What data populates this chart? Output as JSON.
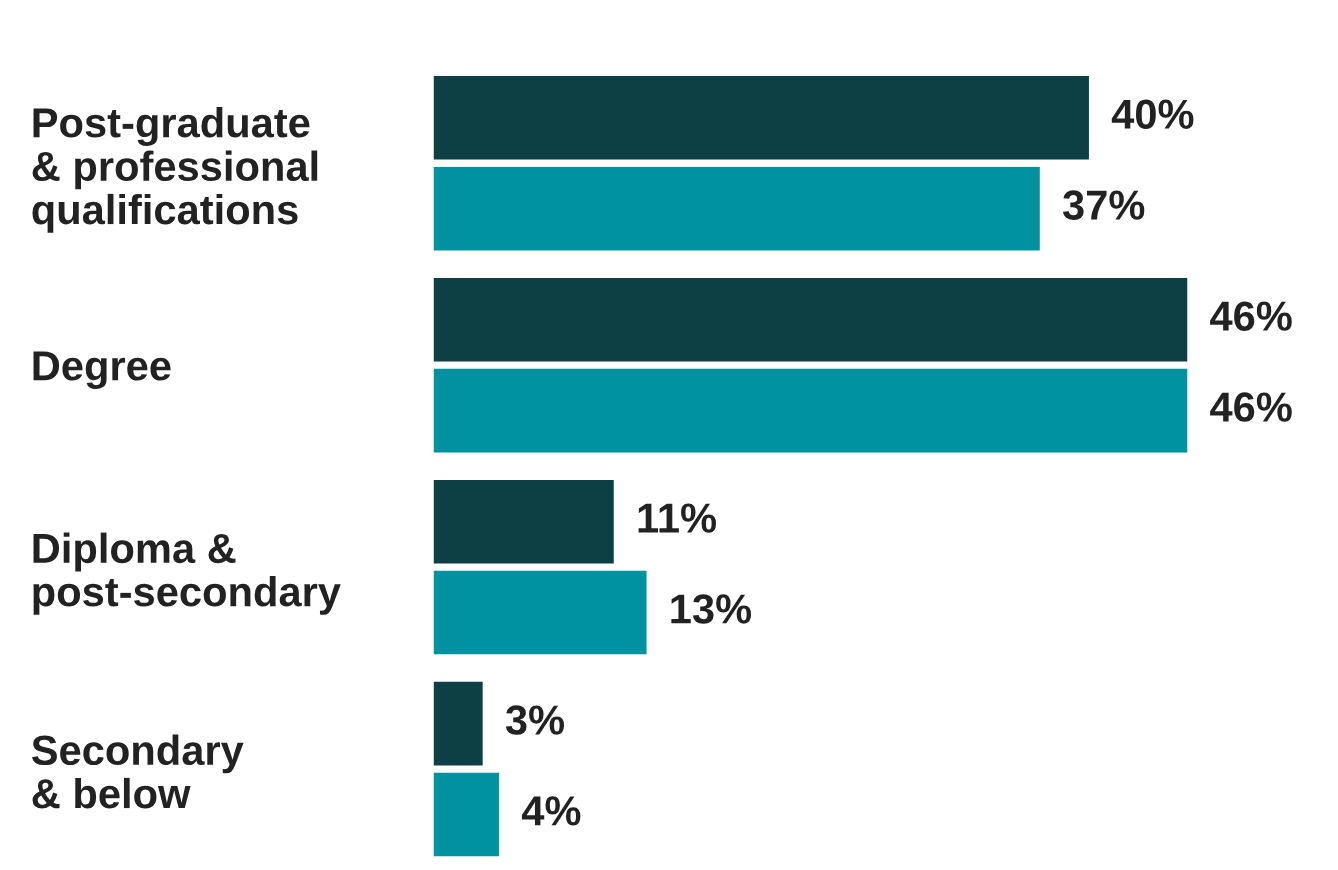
{
  "chart_data": {
    "type": "bar",
    "orientation": "horizontal",
    "categories": [
      "Post-graduate\n& professional\nqualifications",
      "Degree",
      "Diploma &\npost-secondary",
      "Secondary\n& below"
    ],
    "series": [
      {
        "color": "#0d4045",
        "values": [
          40,
          46,
          11,
          3
        ],
        "value_labels": [
          "40%",
          "46%",
          "11%",
          "3%"
        ]
      },
      {
        "color": "#0092a0",
        "values": [
          37,
          46,
          13,
          4
        ],
        "value_labels": [
          "37%",
          "46%",
          "13%",
          "4%"
        ]
      }
    ],
    "legend": false,
    "grid": false
  }
}
